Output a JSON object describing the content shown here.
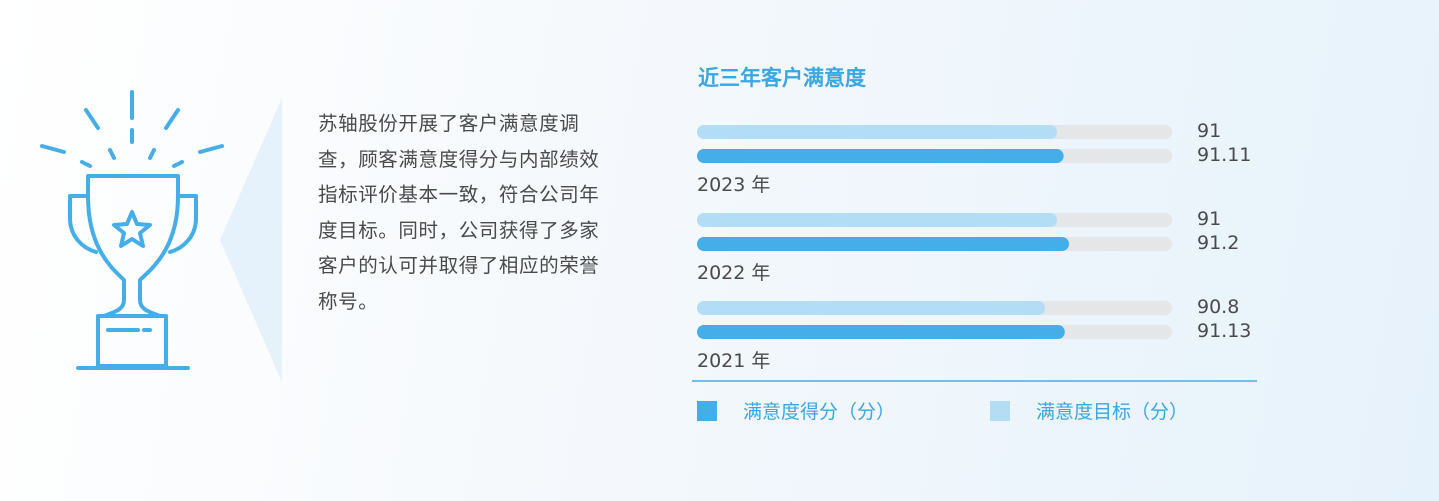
{
  "text": "苏轴股份开展了客户满意度调查，顾客满意度得分与内部绩效指标评价基本一致，符合公司年度目标。同时，公司获得了多家客户的认可并取得了相应的荣誉称号。",
  "chart_data": {
    "type": "bar",
    "orientation": "horizontal",
    "title": "近三年客户满意度",
    "categories": [
      "2023 年",
      "2022 年",
      "2021 年"
    ],
    "series": [
      {
        "name": "满意度目标（分）",
        "color": "#b3dcf5",
        "values": [
          91,
          91,
          90.8
        ]
      },
      {
        "name": "满意度得分（分）",
        "color": "#45aee8",
        "values": [
          91.11,
          91.2,
          91.13
        ]
      }
    ],
    "xlim": [
      85,
      93
    ],
    "track_color": "#e4e6e8"
  }
}
